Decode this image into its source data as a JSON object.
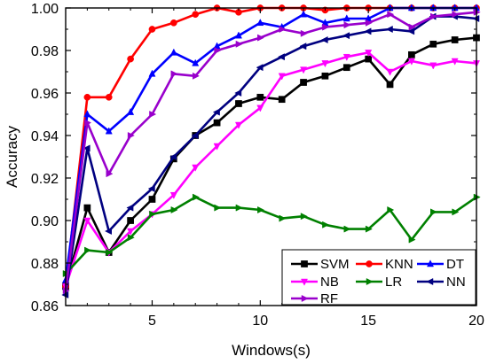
{
  "chart_data": {
    "type": "line",
    "xlabel": "Windows(s)",
    "ylabel": "Accuracy",
    "xlim": [
      1,
      20
    ],
    "ylim": [
      0.86,
      1.0
    ],
    "xticks": [
      5,
      10,
      15,
      20
    ],
    "yticks": [
      0.86,
      0.88,
      0.9,
      0.92,
      0.94,
      0.96,
      0.98,
      1.0
    ],
    "ytick_labels": [
      "0.86",
      "0.88",
      "0.90",
      "0.92",
      "0.94",
      "0.96",
      "0.98",
      "1.00"
    ],
    "grid": false,
    "legend_position": "bottom-right",
    "x": [
      1,
      2,
      3,
      4,
      5,
      6,
      7,
      8,
      9,
      10,
      11,
      12,
      13,
      14,
      15,
      16,
      17,
      18,
      19,
      20
    ],
    "series": [
      {
        "name": "SVM",
        "color": "#000000",
        "marker": "square",
        "values": [
          0.869,
          0.906,
          0.885,
          0.9,
          0.91,
          0.929,
          0.94,
          0.946,
          0.955,
          0.958,
          0.957,
          0.965,
          0.968,
          0.972,
          0.976,
          0.964,
          0.978,
          0.983,
          0.985,
          0.986
        ]
      },
      {
        "name": "KNN",
        "color": "#ff0000",
        "marker": "circle",
        "values": [
          0.869,
          0.958,
          0.958,
          0.976,
          0.99,
          0.993,
          0.997,
          1.0,
          0.998,
          1.0,
          1.0,
          1.0,
          0.999,
          1.0,
          1.0,
          1.0,
          1.0,
          1.0,
          1.0,
          1.0
        ]
      },
      {
        "name": "DT",
        "color": "#0000ff",
        "marker": "triangle-up",
        "values": [
          0.872,
          0.95,
          0.942,
          0.951,
          0.969,
          0.979,
          0.974,
          0.982,
          0.987,
          0.993,
          0.991,
          0.997,
          0.993,
          0.995,
          0.995,
          1.0,
          1.0,
          1.0,
          1.0,
          1.0
        ]
      },
      {
        "name": "NB",
        "color": "#ff00ff",
        "marker": "triangle-down",
        "values": [
          0.869,
          0.9,
          0.885,
          0.895,
          0.903,
          0.912,
          0.925,
          0.935,
          0.945,
          0.953,
          0.968,
          0.971,
          0.974,
          0.977,
          0.979,
          0.97,
          0.975,
          0.973,
          0.975,
          0.974
        ]
      },
      {
        "name": "LR",
        "color": "#008000",
        "marker": "triangle-right",
        "values": [
          0.875,
          0.886,
          0.885,
          0.892,
          0.903,
          0.905,
          0.911,
          0.906,
          0.906,
          0.905,
          0.901,
          0.902,
          0.898,
          0.896,
          0.896,
          0.905,
          0.891,
          0.904,
          0.904,
          0.911
        ]
      },
      {
        "name": "NN",
        "color": "#000080",
        "marker": "triangle-left",
        "values": [
          0.865,
          0.934,
          0.895,
          0.906,
          0.915,
          0.93,
          0.94,
          0.951,
          0.96,
          0.972,
          0.977,
          0.982,
          0.985,
          0.987,
          0.989,
          0.99,
          0.989,
          0.996,
          0.996,
          0.995
        ]
      },
      {
        "name": "RF",
        "color": "#9900cc",
        "marker": "triangle-right",
        "values": [
          0.867,
          0.946,
          0.922,
          0.94,
          0.95,
          0.969,
          0.968,
          0.98,
          0.983,
          0.986,
          0.99,
          0.988,
          0.991,
          0.992,
          0.993,
          0.997,
          0.991,
          0.996,
          0.997,
          0.998
        ]
      }
    ]
  }
}
